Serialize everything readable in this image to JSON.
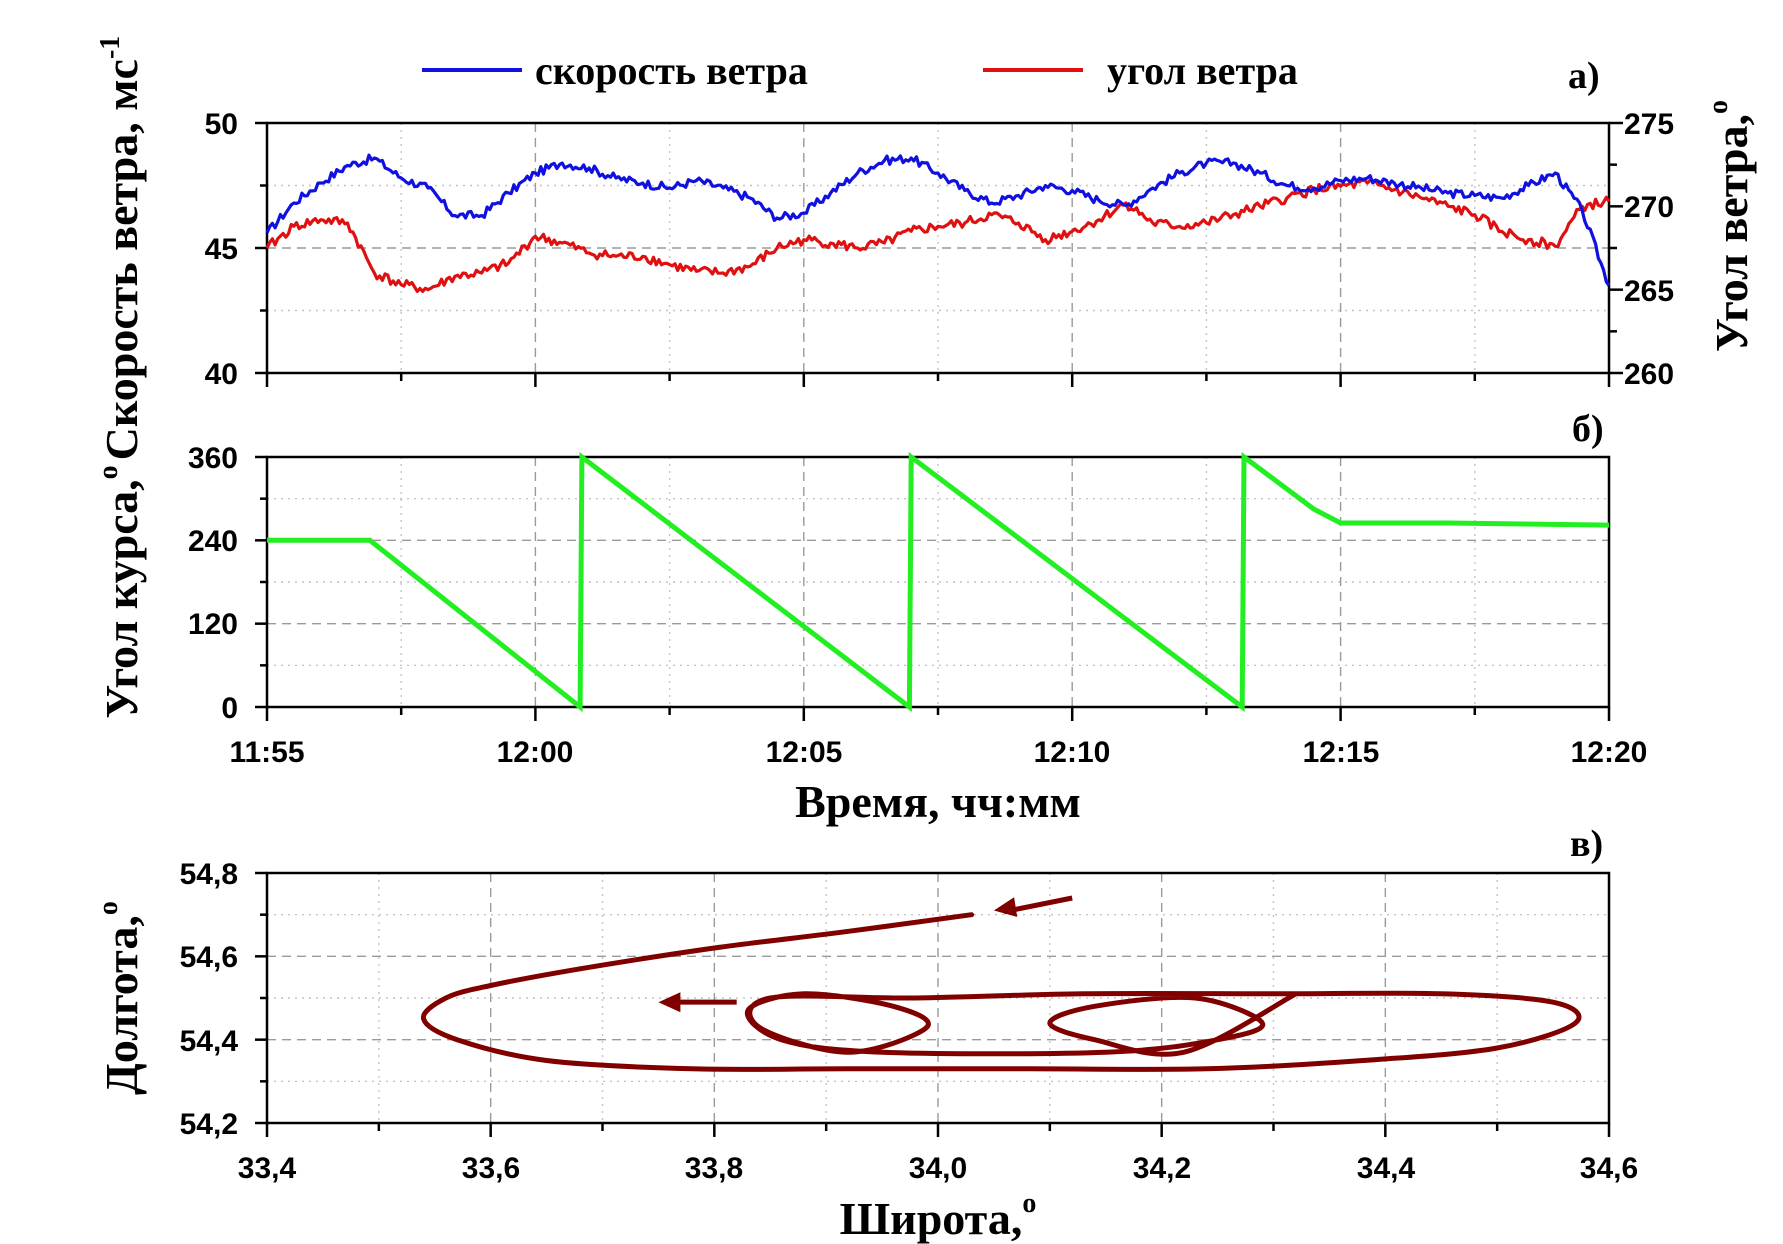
{
  "chart_data": [
    {
      "panel_label": "а)",
      "type": "line",
      "x_unit": "time hh:mm",
      "xlim": [
        "11:55",
        "12:20"
      ],
      "ylabel": "Скорость ветра, мс",
      "ylabel_sup": "-1",
      "ylim": [
        40,
        50
      ],
      "y_ticks": [
        "50",
        "45",
        "40"
      ],
      "y2label": "Угол ветра,",
      "y2label_sup": "o",
      "y2lim": [
        260,
        275
      ],
      "y2_ticks": [
        "275",
        "270",
        "265",
        "260"
      ],
      "grid": true,
      "legend_position": "top",
      "colors": {
        "wind_speed": "#1010e0",
        "wind_angle": "#e01010"
      },
      "legend": [
        {
          "name": "скорость ветра",
          "color": "#1010e0"
        },
        {
          "name": "угол ветра",
          "color": "#e01010"
        }
      ],
      "series": [
        {
          "name": "скорость ветра",
          "axis": "left",
          "x": [
            "11:55",
            "11:55:30",
            "11:56",
            "11:56:30",
            "11:57",
            "11:57:30",
            "11:58",
            "11:58:30",
            "11:59",
            "11:59:30",
            "12:00",
            "12:00:30",
            "12:01",
            "12:01:30",
            "12:02",
            "12:02:30",
            "12:03",
            "12:03:30",
            "12:04",
            "12:04:30",
            "12:05",
            "12:05:30",
            "12:06",
            "12:06:30",
            "12:07",
            "12:07:30",
            "12:08",
            "12:08:30",
            "12:09",
            "12:09:30",
            "12:10",
            "12:10:30",
            "12:11",
            "12:11:30",
            "12:12",
            "12:12:30",
            "12:13",
            "12:13:30",
            "12:14",
            "12:14:30",
            "12:15",
            "12:15:30",
            "12:16",
            "12:16:30",
            "12:17",
            "12:17:30",
            "12:18",
            "12:18:30",
            "12:19",
            "12:19:30",
            "12:20"
          ],
          "y": [
            45.6,
            46.8,
            47.6,
            48.3,
            48.6,
            47.8,
            47.4,
            46.3,
            46.3,
            47.2,
            48.0,
            48.4,
            48.2,
            47.8,
            47.6,
            47.4,
            47.7,
            47.4,
            47.0,
            46.2,
            46.4,
            47.2,
            48.0,
            48.5,
            48.6,
            48.0,
            47.3,
            46.8,
            47.1,
            47.5,
            47.3,
            46.9,
            46.7,
            47.4,
            48.0,
            48.4,
            48.4,
            48.0,
            47.5,
            47.4,
            47.7,
            47.8,
            47.6,
            47.4,
            47.2,
            47.1,
            47.0,
            47.5,
            48.0,
            46.5,
            43.5
          ]
        },
        {
          "name": "угол ветра",
          "axis": "right",
          "x": [
            "11:55",
            "11:55:30",
            "11:56",
            "11:56:30",
            "11:57",
            "11:57:30",
            "11:58",
            "11:58:30",
            "11:59",
            "11:59:30",
            "12:00",
            "12:00:30",
            "12:01",
            "12:01:30",
            "12:02",
            "12:02:30",
            "12:03",
            "12:03:30",
            "12:04",
            "12:04:30",
            "12:05",
            "12:05:30",
            "12:06",
            "12:06:30",
            "12:07",
            "12:07:30",
            "12:08",
            "12:08:30",
            "12:09",
            "12:09:30",
            "12:10",
            "12:10:30",
            "12:11",
            "12:11:30",
            "12:12",
            "12:12:30",
            "12:13",
            "12:13:30",
            "12:14",
            "12:14:30",
            "12:15",
            "12:15:30",
            "12:16",
            "12:16:30",
            "12:17",
            "12:17:30",
            "12:18",
            "12:18:30",
            "12:19",
            "12:19:30",
            "12:20"
          ],
          "y": [
            267.5,
            268.8,
            269.2,
            269.0,
            266.0,
            265.3,
            265.0,
            265.8,
            266.0,
            266.6,
            268.2,
            267.8,
            267.2,
            267.0,
            267.0,
            266.5,
            266.1,
            266.0,
            266.4,
            267.5,
            268.0,
            267.8,
            267.5,
            267.8,
            268.5,
            268.8,
            269.0,
            269.5,
            269.0,
            268.0,
            268.5,
            269.2,
            270.2,
            269.0,
            268.8,
            269.0,
            269.5,
            270.0,
            270.5,
            271.0,
            271.2,
            271.4,
            271.0,
            270.5,
            270.0,
            269.5,
            268.5,
            268.0,
            267.6,
            270.0,
            270.3
          ]
        }
      ]
    },
    {
      "panel_label": "б)",
      "type": "line",
      "x_unit": "time hh:mm",
      "xlim": [
        "11:55",
        "12:20"
      ],
      "x_ticks": [
        "11:55",
        "12:00",
        "12:05",
        "12:10",
        "12:15",
        "12:20"
      ],
      "xlabel": "Время, чч:мм",
      "ylabel": "Угол курса,",
      "ylabel_sup": "o",
      "ylim": [
        0,
        360
      ],
      "y_ticks": [
        "360",
        "240",
        "120",
        "0"
      ],
      "grid": true,
      "colors": {
        "course": "#22ee22"
      },
      "series": [
        {
          "name": "",
          "x": [
            "11:55",
            "11:56:55",
            "12:00:50",
            "12:00:52",
            "12:06:58",
            "12:07:00",
            "12:13:10",
            "12:13:12",
            "12:14:30",
            "12:15",
            "12:17",
            "12:20"
          ],
          "y": [
            240,
            240,
            0,
            360,
            0,
            360,
            0,
            360,
            285,
            265,
            265,
            262
          ]
        }
      ]
    },
    {
      "panel_label": "в)",
      "type": "line",
      "xlabel": "Широта,",
      "xlabel_sup": "o",
      "ylabel": "Долгота,",
      "ylabel_sup": "o",
      "xlim": [
        33.4,
        34.6
      ],
      "ylim": [
        54.2,
        54.8
      ],
      "x_ticks": [
        "33,4",
        "33,6",
        "33,8",
        "34,0",
        "34,2",
        "34,4",
        "34,6"
      ],
      "y_ticks": [
        "54,8",
        "54,6",
        "54,4",
        "54,2"
      ],
      "grid": true,
      "colors": {
        "track": "#800000",
        "arrows": "#800000"
      },
      "series": [
        {
          "name": "",
          "x": [
            34.03,
            33.92,
            33.8,
            33.68,
            33.6,
            33.56,
            33.54,
            33.57,
            33.65,
            33.78,
            33.92,
            34.08,
            34.24,
            34.38,
            34.5,
            34.57,
            34.55,
            34.45,
            34.3,
            34.13,
            33.98,
            33.85,
            33.84,
            33.92,
            33.99,
            33.96,
            33.88,
            33.83,
            33.86,
            33.95,
            34.15,
            34.25,
            34.29,
            34.23,
            34.14,
            34.1,
            34.14,
            34.22,
            34.32
          ],
          "y": [
            54.7,
            54.66,
            54.62,
            54.57,
            54.53,
            54.5,
            54.45,
            54.4,
            54.35,
            54.33,
            54.33,
            54.33,
            54.33,
            54.35,
            54.38,
            54.44,
            54.49,
            54.51,
            54.51,
            54.51,
            54.5,
            54.5,
            54.43,
            54.37,
            54.43,
            54.48,
            54.51,
            54.47,
            54.4,
            54.37,
            54.37,
            54.4,
            54.44,
            54.5,
            54.48,
            54.44,
            54.4,
            54.37,
            54.51
          ]
        }
      ],
      "annotations": [
        {
          "type": "arrow",
          "from": [
            34.12,
            54.74
          ],
          "to": [
            34.05,
            54.71
          ]
        },
        {
          "type": "arrow",
          "from": [
            33.82,
            54.49
          ],
          "to": [
            33.75,
            54.49
          ]
        }
      ]
    }
  ]
}
